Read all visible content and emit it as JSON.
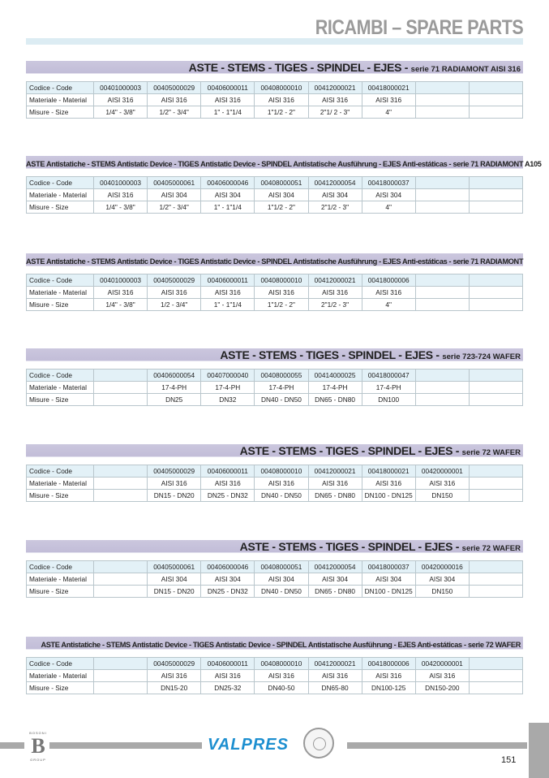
{
  "title": "RICAMBI – SPARE PARTS",
  "row_labels": [
    "Codice - Code",
    "Materiale - Material",
    "Misure - Size"
  ],
  "sections": [
    {
      "title": "ASTE - STEMS - TIGES - SPINDEL - EJES - ",
      "series": "serie 71  RADIAMONT AISI 316",
      "small": false,
      "rows": [
        [
          "00401000003",
          "00405000029",
          "00406000011",
          "00408000010",
          "00412000021",
          "00418000021",
          "",
          ""
        ],
        [
          "AISI 316",
          "AISI 316",
          "AISI 316",
          "AISI 316",
          "AISI 316",
          "AISI 316",
          "",
          ""
        ],
        [
          "1/4\" - 3/8\"",
          "1/2\" - 3/4\"",
          "1\" - 1\"1/4",
          "1\"1/2 - 2\"",
          "2\"1/ 2 - 3\"",
          "4\"",
          "",
          ""
        ]
      ]
    },
    {
      "title": "ASTE Antistatiche - STEMS Antistatic Device - TIGES Antistatic Device - SPINDEL Antistatische Ausführung - EJES Anti-estáticas -  ",
      "series": "serie 71  RADIAMONT A105",
      "small": true,
      "rows": [
        [
          "00401000003",
          "00405000061",
          "00406000046",
          "00408000051",
          "00412000054",
          "00418000037",
          "",
          ""
        ],
        [
          "AISI 316",
          "AISI 304",
          "AISI 304",
          "AISI 304",
          "AISI 304",
          "AISI 304",
          "",
          ""
        ],
        [
          "1/4\" - 3/8\"",
          "1/2\" - 3/4\"",
          "1\" - 1\"1/4",
          "1\"1/2 - 2\"",
          "2\"1/2 - 3\"",
          "4\"",
          "",
          ""
        ]
      ]
    },
    {
      "title": "ASTE Antistatiche - STEMS Antistatic Device - TIGES Antistatic Device - SPINDEL Antistatische Ausführung - EJES Anti-estáticas -  ",
      "series": "serie 71  RADIAMONT",
      "small": true,
      "rows": [
        [
          "00401000003",
          "00405000029",
          "00406000011",
          "00408000010",
          "00412000021",
          "00418000006",
          "",
          ""
        ],
        [
          "AISI 316",
          "AISI 316",
          "AISI 316",
          "AISI 316",
          "AISI 316",
          "AISI 316",
          "",
          ""
        ],
        [
          "1/4\" - 3/8\"",
          "1/2 - 3/4\"",
          "1\" - 1\"1/4",
          "1\"1/2 - 2\"",
          "2\"1/2 - 3\"",
          "4\"",
          "",
          ""
        ]
      ]
    },
    {
      "title": "ASTE - STEMS - TIGES - SPINDEL - EJES - ",
      "series": "serie 723-724  WAFER",
      "small": false,
      "rows": [
        [
          "",
          "00406000054",
          "00407000040",
          "00408000055",
          "00414000025",
          "00418000047",
          "",
          ""
        ],
        [
          "",
          "17-4-PH",
          "17-4-PH",
          "17-4-PH",
          "17-4-PH",
          "17-4-PH",
          "",
          ""
        ],
        [
          "",
          "DN25",
          "DN32",
          "DN40 - DN50",
          "DN65 - DN80",
          "DN100",
          "",
          ""
        ]
      ]
    },
    {
      "title": "ASTE - STEMS - TIGES - SPINDEL - EJES - ",
      "series": "serie 72  WAFER",
      "small": false,
      "rows": [
        [
          "",
          "00405000029",
          "00406000011",
          "00408000010",
          "00412000021",
          "00418000021",
          "00420000001",
          ""
        ],
        [
          "",
          "AISI 316",
          "AISI 316",
          "AISI 316",
          "AISI 316",
          "AISI 316",
          "AISI 316",
          ""
        ],
        [
          "",
          "DN15 - DN20",
          "DN25 - DN32",
          "DN40 - DN50",
          "DN65 - DN80",
          "DN100 - DN125",
          "DN150",
          ""
        ]
      ]
    },
    {
      "title": "ASTE - STEMS - TIGES - SPINDEL - EJES - ",
      "series": "serie 72  WAFER",
      "small": false,
      "rows": [
        [
          "",
          "00405000061",
          "00406000046",
          "00408000051",
          "00412000054",
          "00418000037",
          "00420000016",
          ""
        ],
        [
          "",
          "AISI 304",
          "AISI 304",
          "AISI 304",
          "AISI 304",
          "AISI 304",
          "AISI 304",
          ""
        ],
        [
          "",
          "DN15 - DN20",
          "DN25 - DN32",
          "DN40 - DN50",
          "DN65 - DN80",
          "DN100 - DN125",
          "DN150",
          ""
        ]
      ]
    },
    {
      "title": "ASTE Antistatiche - STEMS Antistatic Device - TIGES Antistatic Device - SPINDEL Antistatische Ausführung - EJES Anti-estáticas -  ",
      "series": "serie 72  WAFER",
      "small": true,
      "rows": [
        [
          "",
          "00405000029",
          "00406000011",
          "00408000010",
          "00412000021",
          "00418000006",
          "00420000001",
          ""
        ],
        [
          "",
          "AISI 316",
          "AISI 316",
          "AISI 316",
          "AISI 316",
          "AISI 316",
          "AISI 316",
          ""
        ],
        [
          "",
          "DN15-20",
          "DN25-32",
          "DN40-50",
          "DN65-80",
          "DN100-125",
          "DN150-200",
          ""
        ]
      ]
    }
  ],
  "footer": {
    "brand": "VALPRES",
    "group_logo_top": "BOSONI",
    "group_logo_letter": "B",
    "group_logo_bottom": "GROUP",
    "page_number": "151",
    "brand_color": "#1d8fd0"
  }
}
